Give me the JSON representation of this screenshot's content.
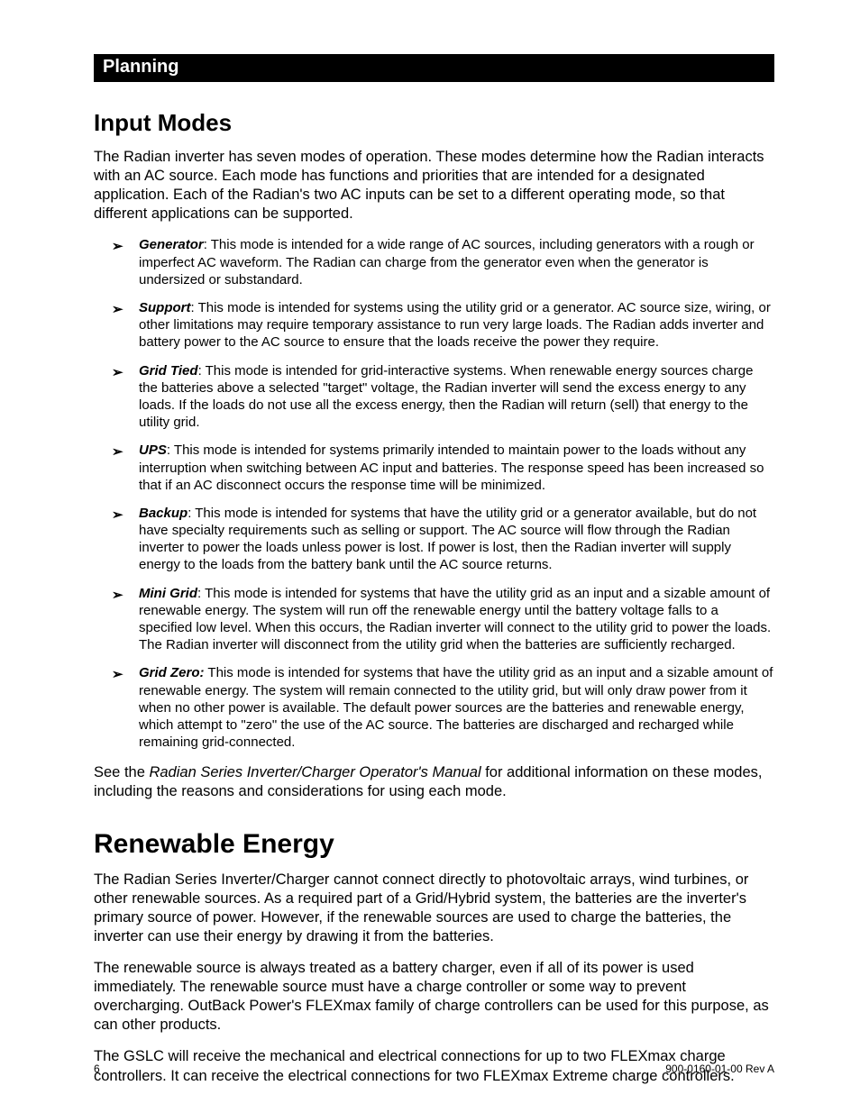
{
  "banner": "Planning",
  "section1_title": "Input Modes",
  "intro1": "The Radian inverter has seven modes of operation.  These modes determine how the Radian interacts with an AC source.  Each mode has functions and priorities that are intended for a designated application.  Each of the Radian's two AC inputs can be set to a different operating mode, so that different applications can be supported.",
  "modes": [
    {
      "name": "Generator",
      "sep": ":  ",
      "desc": "This mode is intended for a wide range of AC sources, including generators with a rough or imperfect AC waveform.  The Radian can charge from the generator even when the generator is undersized or substandard."
    },
    {
      "name": "Support",
      "sep": ":  ",
      "desc": "This mode is intended for systems using the utility grid or a generator.  AC source size, wiring, or other limitations may require temporary assistance to run very large loads.  The Radian adds inverter and battery power to the AC source to ensure that the loads receive the power they require."
    },
    {
      "name": "Grid Tied",
      "sep": ":  ",
      "desc": "This mode is intended for grid-interactive systems.   When renewable energy sources charge the batteries above a selected \"target\" voltage, the Radian inverter will send the excess energy to any loads.  If the loads do not use all the excess energy, then the Radian will return (sell) that energy to the utility grid."
    },
    {
      "name": "UPS",
      "sep": ":  ",
      "desc": "This mode is intended for systems primarily intended to maintain power to the loads without any interruption when switching between AC input and batteries.  The response speed has been increased so that if an AC disconnect occurs the response time will be minimized."
    },
    {
      "name": "Backup",
      "sep": ":  ",
      "desc": "This mode is intended for systems that have the utility grid or a generator available, but do not have specialty requirements such as selling or support.  The AC source will flow through the Radian inverter to power the loads unless power is lost.  If power is lost, then the Radian inverter will supply energy to the loads from the battery bank until the AC source returns."
    },
    {
      "name": "Mini Grid",
      "sep": ":  ",
      "desc": "This mode is intended for systems that have the utility grid as an input and a sizable amount of renewable energy.  The system will run off the renewable energy until the battery voltage falls to a specified low level.  When this occurs, the Radian inverter will connect to the utility grid to power the loads.  The Radian inverter will disconnect from the utility grid when the batteries are sufficiently recharged."
    },
    {
      "name": "Grid Zero:",
      "sep": " ",
      "desc": "This mode is intended for systems that have the utility grid as an input and a sizable amount of renewable energy.  The system will remain connected to the utility grid, but will only draw power from it when no other power is available.  The default power sources are the batteries and renewable energy, which attempt to \"zero\" the use of the AC source.  The batteries are discharged and recharged while remaining grid-connected."
    }
  ],
  "see_pre": "See the ",
  "see_italic": "Radian Series Inverter/Charger Operator's Manual",
  "see_post": " for additional information on these modes, including the reasons and considerations for using each mode.",
  "section2_title": "Renewable Energy",
  "renew_p1": "The Radian Series Inverter/Charger cannot connect directly to photovoltaic arrays, wind turbines, or other renewable sources.  As a required part of a Grid/Hybrid system, the batteries are the inverter's primary source of power.  However, if the renewable sources are used to charge the batteries, the inverter can use their energy by drawing it from the batteries.",
  "renew_p2": "The renewable source is always treated as a battery charger, even if all of its power is used immediately.  The renewable source must have a charge controller or some way to prevent overcharging.  OutBack Power's FLEXmax family of charge controllers can be used for this purpose, as can other products.",
  "renew_p3": "The GSLC will receive the mechanical and electrical connections for up to two FLEXmax charge controllers.  It can receive the electrical connections for two FLEXmax Extreme charge controllers.",
  "page_number": "6",
  "doc_rev": "900-0160-01-00 Rev A"
}
